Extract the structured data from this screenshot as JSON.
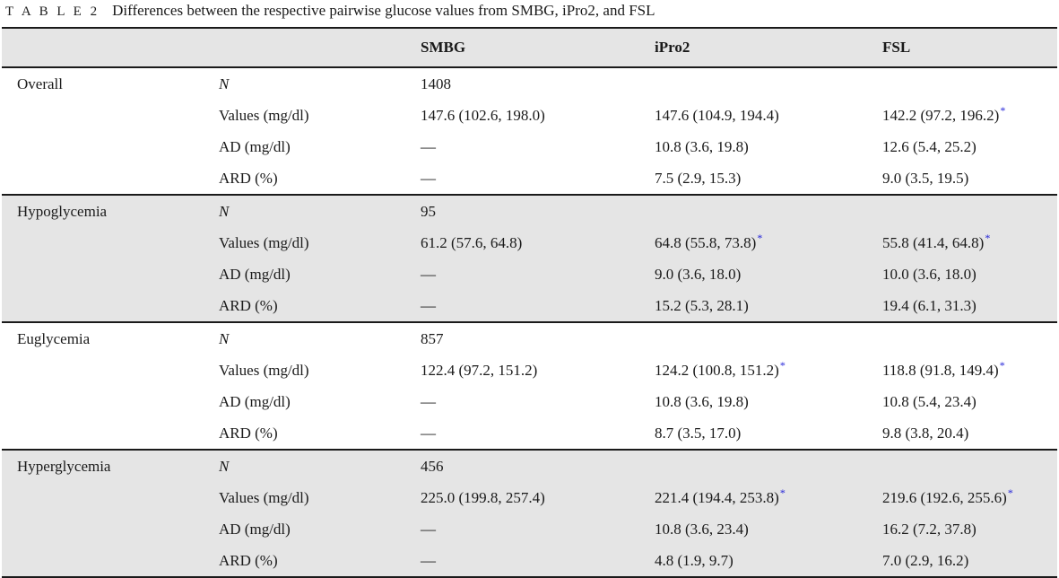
{
  "caption": {
    "label": "T A B L E 2",
    "text": "Differences between the respective pairwise glucose values from SMBG, iPro2, and FSL"
  },
  "headers": [
    "",
    "",
    "SMBG",
    "iPro2",
    "FSL"
  ],
  "marker": "*",
  "groups": [
    {
      "name": "Overall",
      "rows": [
        {
          "metric": "N",
          "smbg": "1408",
          "ipro2": "",
          "ipro2_star": false,
          "fsl": "",
          "fsl_star": false
        },
        {
          "metric": "Values (mg/dl)",
          "smbg": "147.6 (102.6, 198.0)",
          "ipro2": "147.6 (104.9, 194.4)",
          "ipro2_star": false,
          "fsl": "142.2 (97.2, 196.2)",
          "fsl_star": true
        },
        {
          "metric": "AD (mg/dl)",
          "smbg": "—",
          "ipro2": "10.8 (3.6, 19.8)",
          "ipro2_star": false,
          "fsl": "12.6 (5.4, 25.2)",
          "fsl_star": false
        },
        {
          "metric": "ARD (%)",
          "smbg": "—",
          "ipro2": "7.5 (2.9, 15.3)",
          "ipro2_star": false,
          "fsl": "9.0 (3.5, 19.5)",
          "fsl_star": false
        }
      ]
    },
    {
      "name": "Hypoglycemia",
      "rows": [
        {
          "metric": "N",
          "smbg": "95",
          "ipro2": "",
          "ipro2_star": false,
          "fsl": "",
          "fsl_star": false
        },
        {
          "metric": "Values (mg/dl)",
          "smbg": "61.2 (57.6, 64.8)",
          "ipro2": "64.8 (55.8, 73.8)",
          "ipro2_star": true,
          "fsl": "55.8 (41.4, 64.8)",
          "fsl_star": true
        },
        {
          "metric": "AD (mg/dl)",
          "smbg": "—",
          "ipro2": "9.0 (3.6, 18.0)",
          "ipro2_star": false,
          "fsl": "10.0 (3.6, 18.0)",
          "fsl_star": false
        },
        {
          "metric": "ARD (%)",
          "smbg": "—",
          "ipro2": "15.2 (5.3, 28.1)",
          "ipro2_star": false,
          "fsl": "19.4 (6.1, 31.3)",
          "fsl_star": false
        }
      ]
    },
    {
      "name": "Euglycemia",
      "rows": [
        {
          "metric": "N",
          "smbg": "857",
          "ipro2": "",
          "ipro2_star": false,
          "fsl": "",
          "fsl_star": false
        },
        {
          "metric": "Values (mg/dl)",
          "smbg": "122.4 (97.2, 151.2)",
          "ipro2": "124.2 (100.8, 151.2)",
          "ipro2_star": true,
          "fsl": "118.8 (91.8, 149.4)",
          "fsl_star": true
        },
        {
          "metric": "AD (mg/dl)",
          "smbg": "—",
          "ipro2": "10.8 (3.6, 19.8)",
          "ipro2_star": false,
          "fsl": "10.8 (5.4, 23.4)",
          "fsl_star": false
        },
        {
          "metric": "ARD (%)",
          "smbg": "—",
          "ipro2": "8.7 (3.5, 17.0)",
          "ipro2_star": false,
          "fsl": "9.8 (3.8, 20.4)",
          "fsl_star": false
        }
      ]
    },
    {
      "name": "Hyperglycemia",
      "rows": [
        {
          "metric": "N",
          "smbg": "456",
          "ipro2": "",
          "ipro2_star": false,
          "fsl": "",
          "fsl_star": false
        },
        {
          "metric": "Values (mg/dl)",
          "smbg": "225.0 (199.8, 257.4)",
          "ipro2": "221.4 (194.4, 253.8)",
          "ipro2_star": true,
          "fsl": "219.6 (192.6, 255.6)",
          "fsl_star": true
        },
        {
          "metric": "AD (mg/dl)",
          "smbg": "—",
          "ipro2": "10.8 (3.6, 23.4)",
          "ipro2_star": false,
          "fsl": "16.2 (7.2, 37.8)",
          "fsl_star": false
        },
        {
          "metric": "ARD (%)",
          "smbg": "—",
          "ipro2": "4.8 (1.9, 9.7)",
          "ipro2_star": false,
          "fsl": "7.0 (2.9, 16.2)",
          "fsl_star": false
        }
      ]
    }
  ]
}
